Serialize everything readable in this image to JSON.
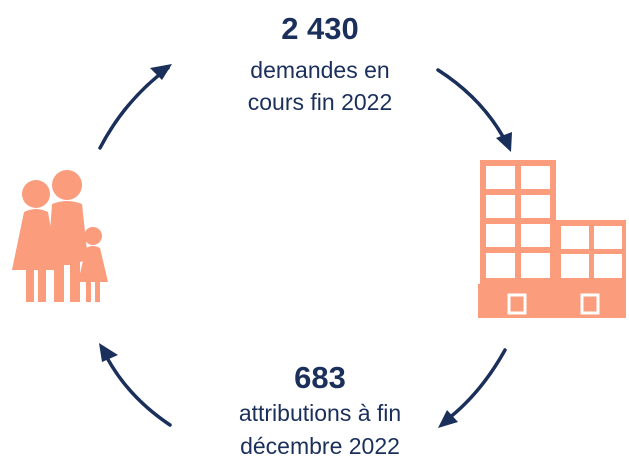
{
  "top": {
    "value": "2 430",
    "lines": [
      "demandes en",
      "cours fin 2022"
    ]
  },
  "bottom": {
    "value": "683",
    "lines": [
      "attributions à fin",
      "décembre 2022"
    ]
  }
}
